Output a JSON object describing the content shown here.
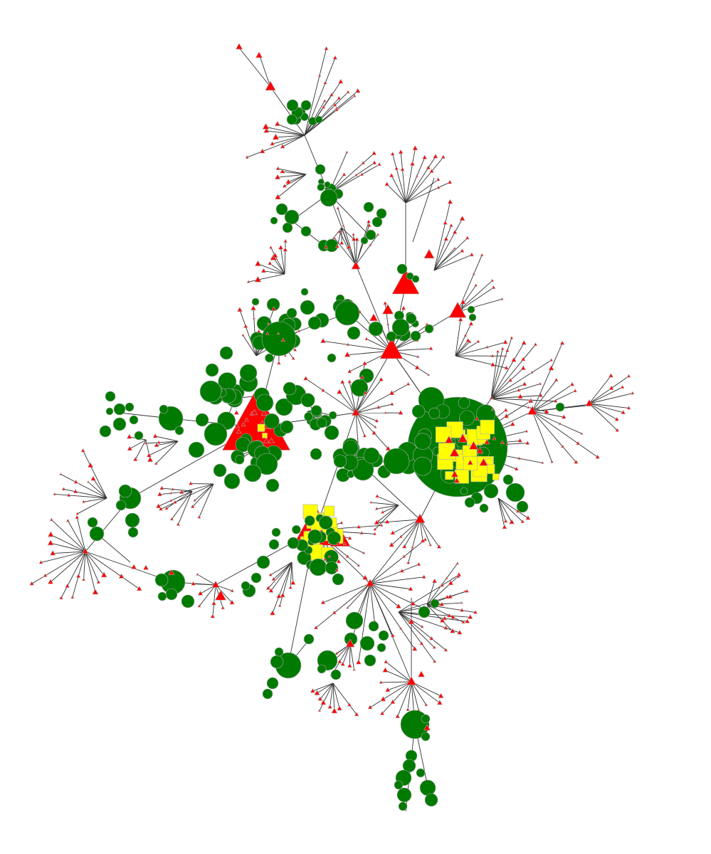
{
  "colors": {
    "background": "#ffffff",
    "edge": "#333333",
    "circle_node": "#007a00",
    "triangle_node": "#ff0000",
    "square_node": "#ffff00",
    "node_outline": "#aaaaaa"
  },
  "node_shapes": [
    "circle",
    "triangle",
    "square"
  ],
  "legend": "none",
  "labels": "none"
}
